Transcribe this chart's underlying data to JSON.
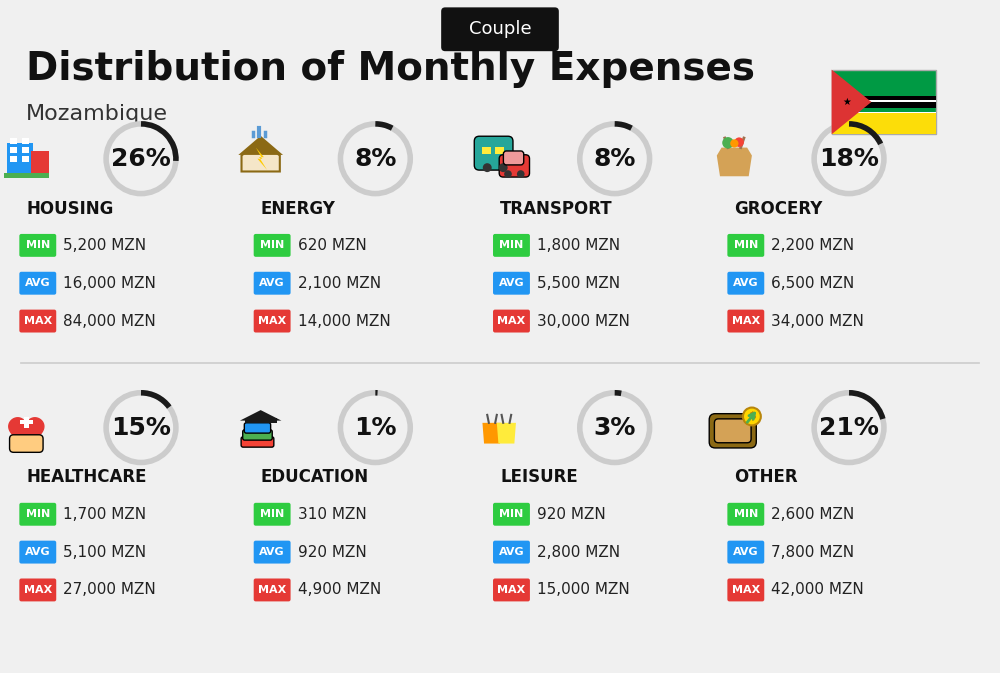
{
  "title": "Distribution of Monthly Expenses",
  "subtitle": "Mozambique",
  "badge": "Couple",
  "bg_color": "#f0f0f0",
  "categories": [
    {
      "name": "HOUSING",
      "percent": 26,
      "min": "5,200 MZN",
      "avg": "16,000 MZN",
      "max": "84,000 MZN",
      "icon": "housing",
      "row": 0,
      "col": 0
    },
    {
      "name": "ENERGY",
      "percent": 8,
      "min": "620 MZN",
      "avg": "2,100 MZN",
      "max": "14,000 MZN",
      "icon": "energy",
      "row": 0,
      "col": 1
    },
    {
      "name": "TRANSPORT",
      "percent": 8,
      "min": "1,800 MZN",
      "avg": "5,500 MZN",
      "max": "30,000 MZN",
      "icon": "transport",
      "row": 0,
      "col": 2
    },
    {
      "name": "GROCERY",
      "percent": 18,
      "min": "2,200 MZN",
      "avg": "6,500 MZN",
      "max": "34,000 MZN",
      "icon": "grocery",
      "row": 0,
      "col": 3
    },
    {
      "name": "HEALTHCARE",
      "percent": 15,
      "min": "1,700 MZN",
      "avg": "5,100 MZN",
      "max": "27,000 MZN",
      "icon": "healthcare",
      "row": 1,
      "col": 0
    },
    {
      "name": "EDUCATION",
      "percent": 1,
      "min": "310 MZN",
      "avg": "920 MZN",
      "max": "4,900 MZN",
      "icon": "education",
      "row": 1,
      "col": 1
    },
    {
      "name": "LEISURE",
      "percent": 3,
      "min": "920 MZN",
      "avg": "2,800 MZN",
      "max": "15,000 MZN",
      "icon": "leisure",
      "row": 1,
      "col": 2
    },
    {
      "name": "OTHER",
      "percent": 21,
      "min": "2,600 MZN",
      "avg": "7,800 MZN",
      "max": "42,000 MZN",
      "icon": "other",
      "row": 1,
      "col": 3
    }
  ],
  "color_min": "#2ecc40",
  "color_avg": "#2196f3",
  "color_max": "#e53935",
  "donut_filled": "#1a1a1a",
  "donut_empty": "#cccccc",
  "title_fontsize": 28,
  "subtitle_fontsize": 16,
  "badge_fontsize": 13,
  "category_fontsize": 12,
  "value_fontsize": 11,
  "percent_fontsize": 18
}
